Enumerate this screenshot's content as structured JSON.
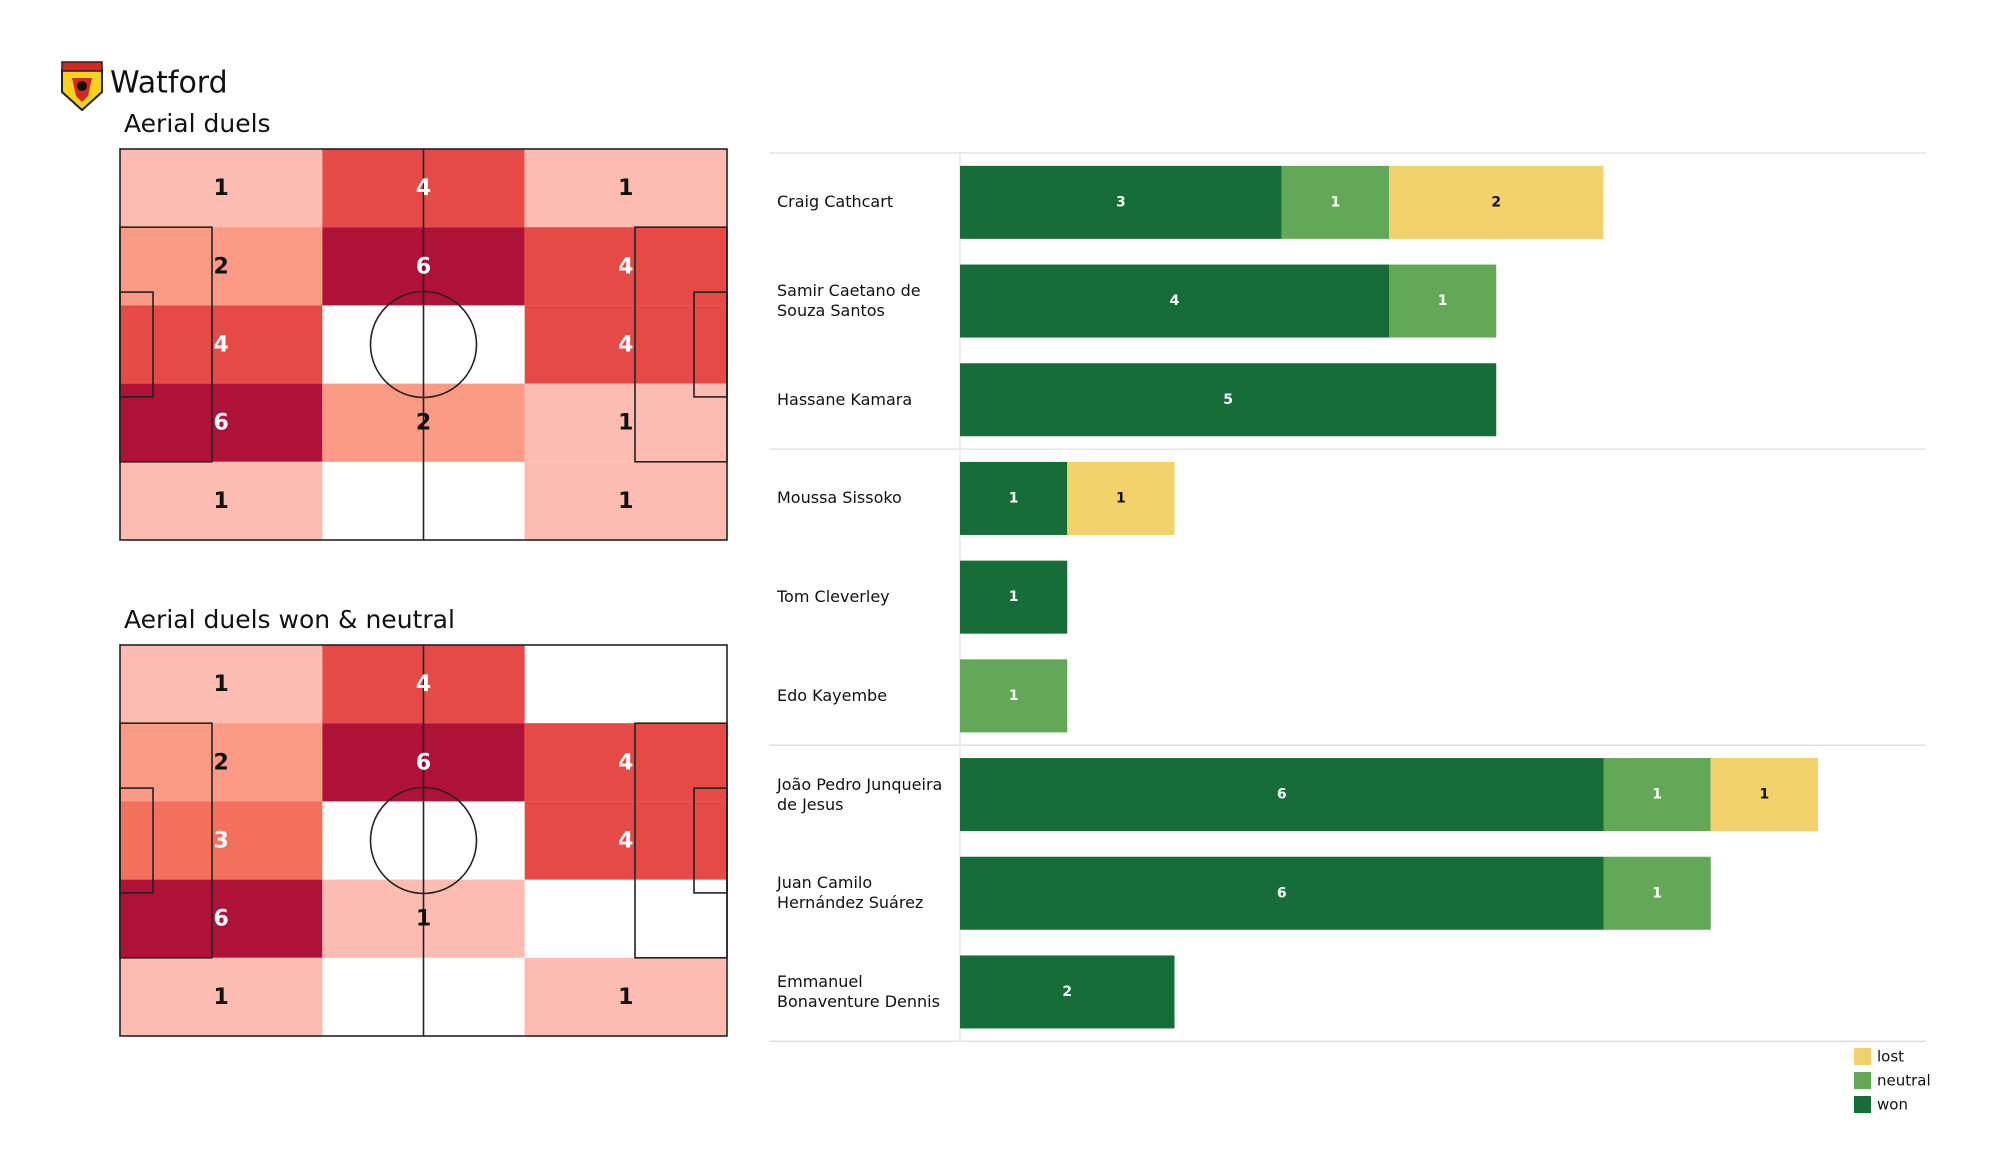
{
  "header": {
    "title": "Watford"
  },
  "chart_data": [
    {
      "type": "heatmap",
      "title": "Aerial duels",
      "values": [
        [
          1,
          4,
          1
        ],
        [
          2,
          6,
          4
        ],
        [
          4,
          null,
          4
        ],
        [
          6,
          2,
          1
        ],
        [
          1,
          null,
          1
        ]
      ]
    },
    {
      "type": "heatmap",
      "title": "Aerial duels won & neutral",
      "values": [
        [
          1,
          4,
          null
        ],
        [
          2,
          6,
          4
        ],
        [
          3,
          null,
          4
        ],
        [
          6,
          1,
          null
        ],
        [
          1,
          null,
          1
        ]
      ]
    },
    {
      "type": "bar",
      "orientation": "horizontal",
      "stacked": true,
      "legend": "lower right",
      "categories": [
        "Craig Cathcart",
        "Samir Caetano de Souza Santos",
        "Hassane Kamara",
        "Moussa Sissoko",
        "Tom Cleverley",
        "Edo Kayembe",
        "João Pedro Junqueira de Jesus",
        "Juan Camilo Hernández Suárez",
        "Emmanuel Bonaventure Dennis"
      ],
      "series": [
        {
          "name": "won",
          "color": "#176d38",
          "values": [
            3,
            4,
            5,
            1,
            1,
            null,
            6,
            6,
            2
          ]
        },
        {
          "name": "neutral",
          "color": "#63a857",
          "values": [
            1,
            1,
            null,
            null,
            null,
            1,
            1,
            1,
            null
          ]
        },
        {
          "name": "lost",
          "color": "#f2d16b",
          "values": [
            2,
            null,
            null,
            1,
            null,
            null,
            1,
            null,
            null
          ]
        }
      ]
    }
  ]
}
